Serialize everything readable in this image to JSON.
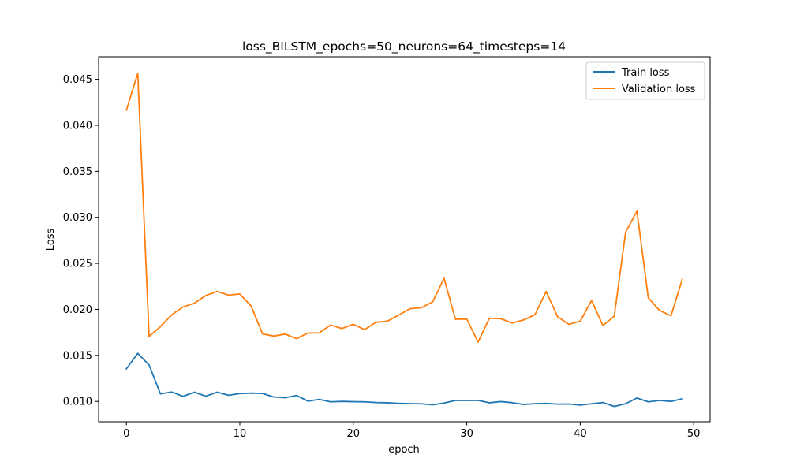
{
  "chart_data": {
    "type": "line",
    "title": "loss_BILSTM_epochs=50_neurons=64_timesteps=14",
    "xlabel": "epoch",
    "ylabel": "Loss",
    "xlim": [
      -2.45,
      51.45
    ],
    "ylim": [
      0.00779,
      0.04745
    ],
    "x_ticks": [
      0,
      10,
      20,
      30,
      40,
      50
    ],
    "y_ticks": [
      0.01,
      0.015,
      0.02,
      0.025,
      0.03,
      0.035,
      0.04,
      0.045
    ],
    "x_tick_labels": [
      "0",
      "10",
      "20",
      "30",
      "40",
      "50"
    ],
    "y_tick_labels": [
      "0.010",
      "0.015",
      "0.020",
      "0.025",
      "0.030",
      "0.035",
      "0.040",
      "0.045"
    ],
    "grid": false,
    "legend_position": "top-right",
    "x": [
      0,
      1,
      2,
      3,
      4,
      5,
      6,
      7,
      8,
      9,
      10,
      11,
      12,
      13,
      14,
      15,
      16,
      17,
      18,
      19,
      20,
      21,
      22,
      23,
      24,
      25,
      26,
      27,
      28,
      29,
      30,
      31,
      32,
      33,
      34,
      35,
      36,
      37,
      38,
      39,
      40,
      41,
      42,
      43,
      44,
      45,
      46,
      47,
      48,
      49
    ],
    "series": [
      {
        "name": "Train loss",
        "color": "#1f77b4",
        "values": [
          0.01355,
          0.01522,
          0.01396,
          0.01082,
          0.01102,
          0.01055,
          0.011,
          0.01057,
          0.011,
          0.01067,
          0.01085,
          0.0109,
          0.01086,
          0.01048,
          0.0104,
          0.01065,
          0.01003,
          0.01022,
          0.00995,
          0.01,
          0.00997,
          0.00995,
          0.00988,
          0.00985,
          0.00978,
          0.00976,
          0.00974,
          0.00963,
          0.00982,
          0.0101,
          0.0101,
          0.01011,
          0.00985,
          0.00998,
          0.00986,
          0.00967,
          0.00975,
          0.00978,
          0.00971,
          0.00972,
          0.0096,
          0.00974,
          0.00988,
          0.00945,
          0.00975,
          0.01037,
          0.00995,
          0.0101,
          0.01,
          0.01029
        ]
      },
      {
        "name": "Validation loss",
        "color": "#ff7f0e",
        "values": [
          0.04165,
          0.04565,
          0.01707,
          0.01812,
          0.01942,
          0.02027,
          0.02068,
          0.02151,
          0.02195,
          0.02155,
          0.02168,
          0.02035,
          0.01733,
          0.0171,
          0.01732,
          0.01682,
          0.01743,
          0.01745,
          0.0183,
          0.01792,
          0.01838,
          0.0178,
          0.0186,
          0.01872,
          0.01938,
          0.02007,
          0.02018,
          0.02082,
          0.02338,
          0.01893,
          0.01895,
          0.01645,
          0.01905,
          0.01898,
          0.01852,
          0.01885,
          0.0194,
          0.02195,
          0.0192,
          0.01837,
          0.01872,
          0.02097,
          0.01825,
          0.01925,
          0.02838,
          0.03068,
          0.02125,
          0.01988,
          0.0193,
          0.02327
        ]
      }
    ]
  }
}
